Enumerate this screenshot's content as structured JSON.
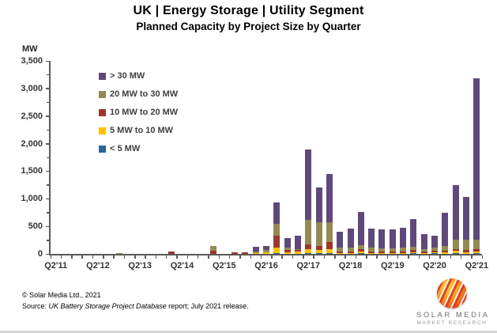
{
  "title": "UK | Energy Storage | Utility Segment",
  "subtitle": "Planned Capacity by Project Size by Quarter",
  "axis_unit": "MW",
  "chart_data": {
    "type": "bar",
    "stacked": true,
    "title": "UK | Energy Storage | Utility Segment — Planned Capacity by Project Size by Quarter",
    "xlabel": "",
    "ylabel": "MW",
    "ylim": [
      0,
      3500
    ],
    "ytick_interval": 500,
    "ytick_minor_interval": 250,
    "ytick_labels": [
      "0",
      "500",
      "1,000",
      "1,500",
      "2,000",
      "2,500",
      "3,000",
      "3,500"
    ],
    "grid": false,
    "legend_position": "upper-left-inside",
    "categories": [
      "Q2'11",
      "Q3'11",
      "Q4'11",
      "Q1'12",
      "Q2'12",
      "Q3'12",
      "Q4'12",
      "Q1'13",
      "Q2'13",
      "Q3'13",
      "Q4'13",
      "Q1'14",
      "Q2'14",
      "Q3'14",
      "Q4'14",
      "Q1'15",
      "Q2'15",
      "Q3'15",
      "Q4'15",
      "Q1'16",
      "Q2'16",
      "Q3'16",
      "Q4'16",
      "Q1'17",
      "Q2'17",
      "Q3'17",
      "Q4'17",
      "Q1'18",
      "Q2'18",
      "Q3'18",
      "Q4'18",
      "Q1'19",
      "Q2'19",
      "Q3'19",
      "Q4'19",
      "Q1'20",
      "Q2'20",
      "Q3'20",
      "Q4'20",
      "Q1'21",
      "Q2'21"
    ],
    "xtick_label_every": 4,
    "series": [
      {
        "name": "> 30 MW",
        "color": "#5F497A",
        "values": [
          0,
          0,
          0,
          0,
          0,
          0,
          0,
          0,
          0,
          0,
          0,
          0,
          0,
          0,
          0,
          0,
          0,
          0,
          0,
          85,
          80,
          395,
          170,
          240,
          1285,
          625,
          875,
          290,
          350,
          600,
          345,
          345,
          355,
          360,
          490,
          265,
          215,
          590,
          985,
          780,
          2920
        ]
      },
      {
        "name": "20 MW to 30 MW",
        "color": "#948A54",
        "values": [
          0,
          0,
          0,
          0,
          0,
          0,
          15,
          0,
          0,
          0,
          0,
          0,
          0,
          0,
          0,
          80,
          0,
          0,
          0,
          35,
          40,
          210,
          45,
          15,
          440,
          425,
          360,
          70,
          60,
          80,
          60,
          55,
          55,
          60,
          65,
          50,
          55,
          90,
          170,
          190,
          180
        ]
      },
      {
        "name": "10 MW to 20 MW",
        "color": "#9A372F",
        "values": [
          0,
          0,
          0,
          0,
          0,
          0,
          0,
          0,
          0,
          0,
          0,
          45,
          0,
          0,
          0,
          60,
          0,
          25,
          35,
          0,
          0,
          210,
          40,
          30,
          90,
          85,
          125,
          30,
          35,
          40,
          30,
          30,
          25,
          30,
          35,
          25,
          30,
          35,
          35,
          30,
          35
        ]
      },
      {
        "name": "5 MW to 10 MW",
        "color": "#FFC000",
        "values": [
          0,
          0,
          0,
          0,
          0,
          0,
          0,
          0,
          0,
          0,
          0,
          0,
          0,
          0,
          0,
          0,
          0,
          0,
          0,
          15,
          30,
          110,
          35,
          40,
          70,
          55,
          75,
          10,
          15,
          30,
          20,
          15,
          15,
          20,
          25,
          15,
          20,
          25,
          45,
          30,
          35
        ]
      },
      {
        "name": "< 5 MW",
        "color": "#2C6598",
        "values": [
          0,
          0,
          0,
          0,
          0,
          0,
          0,
          0,
          0,
          0,
          0,
          0,
          0,
          0,
          0,
          0,
          0,
          0,
          0,
          0,
          0,
          10,
          0,
          0,
          15,
          10,
          15,
          0,
          0,
          10,
          0,
          0,
          0,
          0,
          10,
          0,
          10,
          0,
          10,
          5,
          10
        ]
      }
    ]
  },
  "footer": {
    "copyright": "© Solar Media Ltd., 2021",
    "source_prefix": "Source: ",
    "source_italic": "UK Battery Storage Project Database",
    "source_suffix": " report; July 2021 release."
  },
  "logo": {
    "name": "SOLAR MEDIA",
    "sub": "MARKET RESEARCH"
  }
}
